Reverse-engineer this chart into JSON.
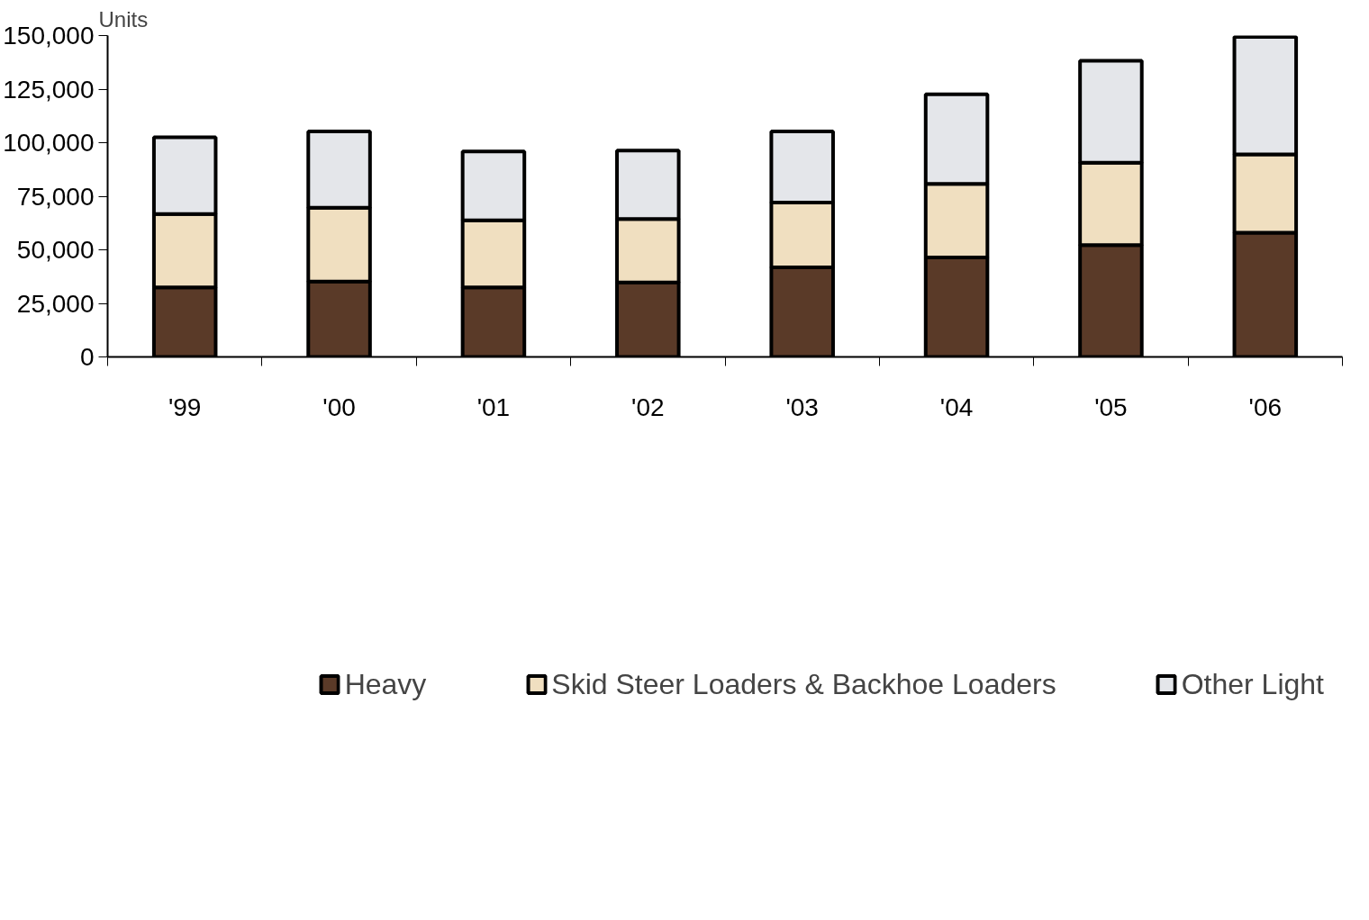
{
  "chart_data": {
    "type": "bar",
    "stacked": true,
    "ylabel": "Units",
    "categories": [
      "'99",
      "'00",
      "'01",
      "'02",
      "'03",
      "'04",
      "'05",
      "'06"
    ],
    "series": [
      {
        "name": "Heavy",
        "color": "#5a3a28",
        "values": [
          32500,
          35200,
          32500,
          34800,
          41800,
          46400,
          52200,
          58000
        ]
      },
      {
        "name": "Skid Steer Loaders & Backhoe Loaders",
        "color": "#f0dfc0",
        "values": [
          34200,
          34400,
          31300,
          29600,
          30300,
          34400,
          38500,
          36500
        ]
      },
      {
        "name": "Other Light",
        "color": "#e4e6ea",
        "values": [
          35800,
          35600,
          32100,
          31900,
          33100,
          41800,
          47500,
          54900
        ]
      }
    ],
    "ylim": [
      0,
      150000
    ],
    "yticks": [
      {
        "value": 0,
        "label": "0"
      },
      {
        "value": 25000,
        "label": "25,000"
      },
      {
        "value": 50000,
        "label": "50,000"
      },
      {
        "value": 75000,
        "label": "75,000"
      },
      {
        "value": 100000,
        "label": "100,000"
      },
      {
        "value": 125000,
        "label": "125,000"
      },
      {
        "value": 150000,
        "label": "150,000"
      }
    ],
    "grid": false,
    "legend": "bottom"
  }
}
